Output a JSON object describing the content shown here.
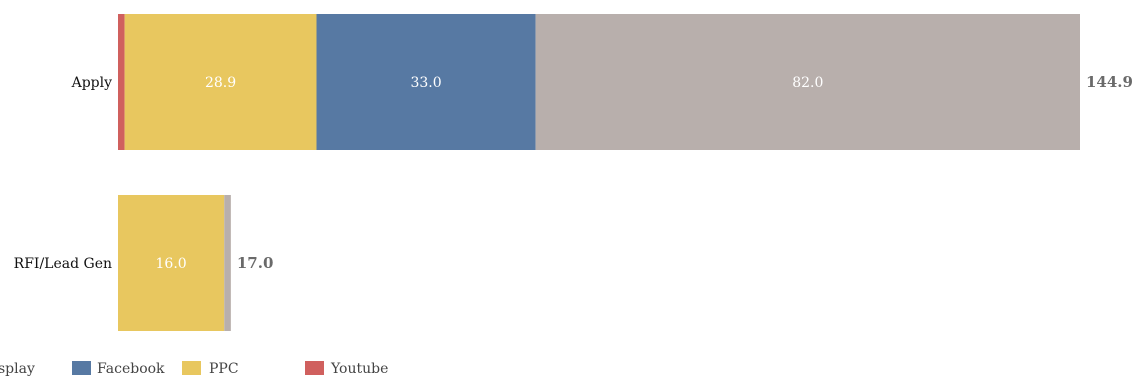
{
  "chart_data": {
    "type": "bar",
    "orientation": "horizontal",
    "stacked": true,
    "categories": [
      "Apply",
      "RFI/Lead Gen"
    ],
    "series": [
      {
        "name": "Youtube",
        "color": "#d0605e",
        "values": [
          1.0,
          0.0
        ]
      },
      {
        "name": "PPC",
        "color": "#e8c75f",
        "values": [
          28.9,
          16.0
        ]
      },
      {
        "name": "Facebook",
        "color": "#5779a3",
        "values": [
          33.0,
          0.0
        ]
      },
      {
        "name": "Display",
        "color": "#b8afac",
        "values": [
          82.0,
          1.0
        ]
      }
    ],
    "segment_labels": [
      [
        "",
        "28.9",
        "33.0",
        "82.0"
      ],
      [
        "",
        "16.0",
        "",
        ""
      ]
    ],
    "totals": [
      "144.9",
      "17.0"
    ],
    "xlim": [
      0,
      144.9
    ],
    "grid": false,
    "legend_position": "bottom-left",
    "legend": [
      {
        "label": "splay",
        "color": "#b8afac"
      },
      {
        "label": "Facebook",
        "color": "#5779a3"
      },
      {
        "label": "PPC",
        "color": "#e8c75f"
      },
      {
        "label": "Youtube",
        "color": "#d0605e"
      }
    ]
  }
}
